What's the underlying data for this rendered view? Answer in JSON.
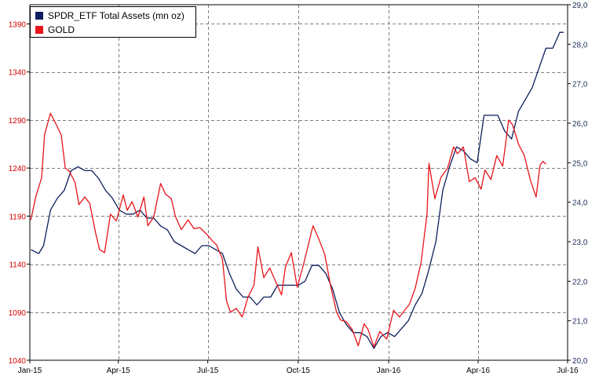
{
  "chart_data": {
    "type": "line",
    "x_axis": {
      "tick_labels": [
        "Jan-15",
        "Apr-15",
        "Jul-15",
        "Oct-15",
        "Jan-16",
        "Apr-16",
        "Jul-16"
      ],
      "range": [
        "2015-01-01",
        "2016-07-01"
      ]
    },
    "y_left": {
      "tick_labels": [
        "1040",
        "1090",
        "1140",
        "1190",
        "1240",
        "1290",
        "1340",
        "1390"
      ],
      "range": [
        1040,
        1410
      ],
      "color": "#d40000"
    },
    "y_right": {
      "tick_labels": [
        "20,0",
        "21,0",
        "22,0",
        "23,0",
        "24,0",
        "25,0",
        "26,0",
        "27,0",
        "28,0",
        "29,0"
      ],
      "range": [
        20.0,
        29.0
      ],
      "color": "#1f2d5c"
    },
    "grid": true,
    "legend_position": "top-left",
    "series": [
      {
        "name": "SPDR_ETF Total Assets (mn oz)",
        "axis": "right",
        "color": "#0d1f5c",
        "points": [
          [
            "2015-01-02",
            22.8
          ],
          [
            "2015-01-10",
            22.7
          ],
          [
            "2015-01-15",
            22.9
          ],
          [
            "2015-01-22",
            23.8
          ],
          [
            "2015-01-29",
            24.1
          ],
          [
            "2015-02-05",
            24.3
          ],
          [
            "2015-02-12",
            24.8
          ],
          [
            "2015-02-19",
            24.9
          ],
          [
            "2015-02-26",
            24.8
          ],
          [
            "2015-03-05",
            24.8
          ],
          [
            "2015-03-12",
            24.6
          ],
          [
            "2015-03-19",
            24.3
          ],
          [
            "2015-03-26",
            24.1
          ],
          [
            "2015-04-02",
            23.8
          ],
          [
            "2015-04-09",
            23.7
          ],
          [
            "2015-04-16",
            23.7
          ],
          [
            "2015-04-23",
            23.8
          ],
          [
            "2015-04-30",
            23.6
          ],
          [
            "2015-05-07",
            23.6
          ],
          [
            "2015-05-14",
            23.4
          ],
          [
            "2015-05-21",
            23.3
          ],
          [
            "2015-05-28",
            23.0
          ],
          [
            "2015-06-04",
            22.9
          ],
          [
            "2015-06-11",
            22.8
          ],
          [
            "2015-06-18",
            22.7
          ],
          [
            "2015-06-25",
            22.9
          ],
          [
            "2015-07-02",
            22.9
          ],
          [
            "2015-07-09",
            22.8
          ],
          [
            "2015-07-16",
            22.7
          ],
          [
            "2015-07-23",
            22.2
          ],
          [
            "2015-07-30",
            21.8
          ],
          [
            "2015-08-06",
            21.6
          ],
          [
            "2015-08-13",
            21.6
          ],
          [
            "2015-08-20",
            21.4
          ],
          [
            "2015-08-27",
            21.6
          ],
          [
            "2015-09-03",
            21.6
          ],
          [
            "2015-09-10",
            21.9
          ],
          [
            "2015-09-17",
            21.9
          ],
          [
            "2015-09-24",
            21.9
          ],
          [
            "2015-10-01",
            21.9
          ],
          [
            "2015-10-08",
            22.0
          ],
          [
            "2015-10-15",
            22.4
          ],
          [
            "2015-10-22",
            22.4
          ],
          [
            "2015-10-29",
            22.2
          ],
          [
            "2015-11-05",
            21.8
          ],
          [
            "2015-11-12",
            21.2
          ],
          [
            "2015-11-19",
            20.9
          ],
          [
            "2015-11-26",
            20.7
          ],
          [
            "2015-12-03",
            20.7
          ],
          [
            "2015-12-10",
            20.6
          ],
          [
            "2015-12-17",
            20.3
          ],
          [
            "2015-12-24",
            20.6
          ],
          [
            "2015-12-31",
            20.7
          ],
          [
            "2016-01-07",
            20.6
          ],
          [
            "2016-01-14",
            20.8
          ],
          [
            "2016-01-21",
            21.0
          ],
          [
            "2016-01-28",
            21.4
          ],
          [
            "2016-02-04",
            21.7
          ],
          [
            "2016-02-11",
            22.3
          ],
          [
            "2016-02-18",
            23.0
          ],
          [
            "2016-02-25",
            24.3
          ],
          [
            "2016-03-03",
            24.9
          ],
          [
            "2016-03-10",
            25.4
          ],
          [
            "2016-03-17",
            25.3
          ],
          [
            "2016-03-24",
            25.1
          ],
          [
            "2016-03-31",
            25.0
          ],
          [
            "2016-04-07",
            26.2
          ],
          [
            "2016-04-14",
            26.2
          ],
          [
            "2016-04-21",
            26.2
          ],
          [
            "2016-04-28",
            25.8
          ],
          [
            "2016-05-05",
            25.6
          ],
          [
            "2016-05-12",
            26.3
          ],
          [
            "2016-05-19",
            26.6
          ],
          [
            "2016-05-26",
            26.9
          ],
          [
            "2016-06-02",
            27.4
          ],
          [
            "2016-06-09",
            27.9
          ],
          [
            "2016-06-16",
            27.9
          ],
          [
            "2016-06-23",
            28.3
          ],
          [
            "2016-06-27",
            28.3
          ]
        ]
      },
      {
        "name": "GOLD",
        "axis": "left",
        "color": "#e8141b",
        "points": [
          [
            "2015-01-02",
            1186
          ],
          [
            "2015-01-07",
            1210
          ],
          [
            "2015-01-13",
            1230
          ],
          [
            "2015-01-16",
            1275
          ],
          [
            "2015-01-22",
            1297
          ],
          [
            "2015-01-28",
            1285
          ],
          [
            "2015-02-02",
            1274
          ],
          [
            "2015-02-06",
            1240
          ],
          [
            "2015-02-10",
            1237
          ],
          [
            "2015-02-16",
            1225
          ],
          [
            "2015-02-20",
            1202
          ],
          [
            "2015-02-26",
            1210
          ],
          [
            "2015-03-03",
            1203
          ],
          [
            "2015-03-09",
            1172
          ],
          [
            "2015-03-13",
            1155
          ],
          [
            "2015-03-18",
            1152
          ],
          [
            "2015-03-24",
            1192
          ],
          [
            "2015-03-30",
            1185
          ],
          [
            "2015-04-06",
            1212
          ],
          [
            "2015-04-10",
            1196
          ],
          [
            "2015-04-15",
            1205
          ],
          [
            "2015-04-21",
            1189
          ],
          [
            "2015-04-27",
            1210
          ],
          [
            "2015-05-01",
            1180
          ],
          [
            "2015-05-07",
            1189
          ],
          [
            "2015-05-14",
            1224
          ],
          [
            "2015-05-19",
            1213
          ],
          [
            "2015-05-25",
            1208
          ],
          [
            "2015-05-29",
            1190
          ],
          [
            "2015-06-04",
            1176
          ],
          [
            "2015-06-11",
            1186
          ],
          [
            "2015-06-17",
            1177
          ],
          [
            "2015-06-23",
            1178
          ],
          [
            "2015-06-30",
            1171
          ],
          [
            "2015-07-06",
            1164
          ],
          [
            "2015-07-10",
            1160
          ],
          [
            "2015-07-16",
            1145
          ],
          [
            "2015-07-20",
            1102
          ],
          [
            "2015-07-24",
            1090
          ],
          [
            "2015-07-30",
            1094
          ],
          [
            "2015-08-05",
            1085
          ],
          [
            "2015-08-11",
            1106
          ],
          [
            "2015-08-17",
            1118
          ],
          [
            "2015-08-21",
            1158
          ],
          [
            "2015-08-27",
            1126
          ],
          [
            "2015-09-02",
            1136
          ],
          [
            "2015-09-08",
            1122
          ],
          [
            "2015-09-14",
            1108
          ],
          [
            "2015-09-18",
            1137
          ],
          [
            "2015-09-24",
            1152
          ],
          [
            "2015-09-30",
            1116
          ],
          [
            "2015-10-06",
            1138
          ],
          [
            "2015-10-12",
            1163
          ],
          [
            "2015-10-16",
            1180
          ],
          [
            "2015-10-22",
            1166
          ],
          [
            "2015-10-28",
            1150
          ],
          [
            "2015-11-03",
            1117
          ],
          [
            "2015-11-09",
            1090
          ],
          [
            "2015-11-13",
            1082
          ],
          [
            "2015-11-19",
            1080
          ],
          [
            "2015-11-25",
            1072
          ],
          [
            "2015-12-01",
            1055
          ],
          [
            "2015-12-07",
            1078
          ],
          [
            "2015-12-11",
            1072
          ],
          [
            "2015-12-17",
            1054
          ],
          [
            "2015-12-23",
            1070
          ],
          [
            "2015-12-30",
            1062
          ],
          [
            "2016-01-06",
            1092
          ],
          [
            "2016-01-12",
            1085
          ],
          [
            "2016-01-18",
            1093
          ],
          [
            "2016-01-22",
            1098
          ],
          [
            "2016-01-28",
            1115
          ],
          [
            "2016-02-03",
            1142
          ],
          [
            "2016-02-09",
            1192
          ],
          [
            "2016-02-11",
            1245
          ],
          [
            "2016-02-17",
            1208
          ],
          [
            "2016-02-23",
            1230
          ],
          [
            "2016-03-01",
            1240
          ],
          [
            "2016-03-07",
            1262
          ],
          [
            "2016-03-11",
            1255
          ],
          [
            "2016-03-17",
            1262
          ],
          [
            "2016-03-23",
            1226
          ],
          [
            "2016-03-29",
            1230
          ],
          [
            "2016-04-04",
            1218
          ],
          [
            "2016-04-08",
            1238
          ],
          [
            "2016-04-14",
            1228
          ],
          [
            "2016-04-20",
            1253
          ],
          [
            "2016-04-26",
            1242
          ],
          [
            "2016-05-02",
            1290
          ],
          [
            "2016-05-06",
            1285
          ],
          [
            "2016-05-12",
            1265
          ],
          [
            "2016-05-18",
            1253
          ],
          [
            "2016-05-24",
            1228
          ],
          [
            "2016-05-30",
            1210
          ],
          [
            "2016-06-03",
            1243
          ],
          [
            "2016-06-06",
            1247
          ],
          [
            "2016-06-09",
            1244
          ]
        ]
      }
    ]
  }
}
